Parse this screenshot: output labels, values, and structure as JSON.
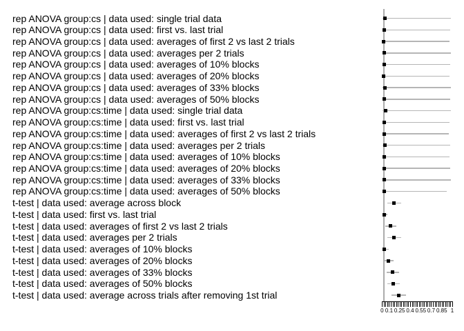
{
  "chart_data": {
    "type": "scatter",
    "title": "",
    "xlabel": "",
    "ylabel": "",
    "xlim": [
      0,
      1
    ],
    "grid": false,
    "x_minor_tick_step": 0.025,
    "x_tick_labels": [
      {
        "pos": 0,
        "label": "0"
      },
      {
        "pos": 0.1,
        "label": "0.1"
      },
      {
        "pos": 0.25,
        "label": "0.25"
      },
      {
        "pos": 0.4,
        "label": "0.4"
      },
      {
        "pos": 0.55,
        "label": "0.55"
      },
      {
        "pos": 0.7,
        "label": "0.7"
      },
      {
        "pos": 0.85,
        "label": "0.85"
      },
      {
        "pos": 1,
        "label": "1"
      }
    ],
    "ref_line_x": 0.025,
    "colors": {
      "marker": "#000000",
      "whisker": "#b5b5b5",
      "ref_line": "#ababab",
      "axis": "#000000",
      "text": "#000000",
      "background": "#ffffff"
    },
    "rows": [
      {
        "label": "rep ANOVA group:cs | data used: single trial data",
        "value": 0.04,
        "lo": 0.005,
        "hi": 0.98
      },
      {
        "label": "rep ANOVA group:cs | data used: first vs. last trial",
        "value": 0.03,
        "lo": 0.005,
        "hi": 0.97
      },
      {
        "label": "rep ANOVA group:cs | data used: averages of first 2 vs last 2 trials",
        "value": 0.022,
        "lo": 0.005,
        "hi": 0.96
      },
      {
        "label": "rep ANOVA group:cs | data used: averages per 2 trials",
        "value": 0.035,
        "lo": 0.005,
        "hi": 0.98
      },
      {
        "label": "rep ANOVA group:cs | data used: averages of 10% blocks",
        "value": 0.035,
        "lo": 0.005,
        "hi": 0.97
      },
      {
        "label": "rep ANOVA group:cs | data used: averages of 20% blocks",
        "value": 0.025,
        "lo": 0.005,
        "hi": 0.96
      },
      {
        "label": "rep ANOVA group:cs | data used: averages of 33% blocks",
        "value": 0.04,
        "lo": 0.005,
        "hi": 0.98
      },
      {
        "label": "rep ANOVA group:cs | data used: averages of 50% blocks",
        "value": 0.035,
        "lo": 0.005,
        "hi": 0.97
      },
      {
        "label": "rep ANOVA group:cs:time | data used: single trial data",
        "value": 0.055,
        "lo": 0.005,
        "hi": 0.98
      },
      {
        "label": "rep ANOVA group:cs:time | data used: first vs. last trial",
        "value": 0.028,
        "lo": 0.005,
        "hi": 0.96
      },
      {
        "label": "rep ANOVA group:cs:time | data used: averages of first 2 vs last 2 trials",
        "value": 0.028,
        "lo": 0.005,
        "hi": 0.95
      },
      {
        "label": "rep ANOVA group:cs:time | data used: averages per 2 trials",
        "value": 0.038,
        "lo": 0.005,
        "hi": 0.97
      },
      {
        "label": "rep ANOVA group:cs:time | data used: averages of 10% blocks",
        "value": 0.03,
        "lo": 0.005,
        "hi": 0.96
      },
      {
        "label": "rep ANOVA group:cs:time | data used: averages of 20% blocks",
        "value": 0.036,
        "lo": 0.005,
        "hi": 0.97
      },
      {
        "label": "rep ANOVA group:cs:time | data used: averages of 33% blocks",
        "value": 0.036,
        "lo": 0.005,
        "hi": 0.98
      },
      {
        "label": "rep ANOVA group:cs:time | data used: averages of 50% blocks",
        "value": 0.03,
        "lo": 0.005,
        "hi": 0.92
      },
      {
        "label": "t-test | data used: average across block",
        "value": 0.17,
        "lo": 0.08,
        "hi": 0.27
      },
      {
        "label": "t-test | data used: first vs. last trial",
        "value": 0.03,
        "lo": 0.003,
        "hi": 0.08
      },
      {
        "label": "t-test | data used: averages of first 2 vs last 2 trials",
        "value": 0.12,
        "lo": 0.05,
        "hi": 0.2
      },
      {
        "label": "t-test | data used: averages per 2 trials",
        "value": 0.17,
        "lo": 0.08,
        "hi": 0.27
      },
      {
        "label": "t-test | data used: averages of 10% blocks",
        "value": 0.03,
        "lo": 0.003,
        "hi": 0.1
      },
      {
        "label": "t-test | data used: averages of 20% blocks",
        "value": 0.09,
        "lo": 0.03,
        "hi": 0.16
      },
      {
        "label": "t-test | data used: averages of 33% blocks",
        "value": 0.15,
        "lo": 0.07,
        "hi": 0.24
      },
      {
        "label": "t-test | data used: averages of 50% blocks",
        "value": 0.155,
        "lo": 0.08,
        "hi": 0.25
      },
      {
        "label": "t-test | data used: average across trials after removing 1st trial",
        "value": 0.235,
        "lo": 0.13,
        "hi": 0.34
      }
    ]
  }
}
